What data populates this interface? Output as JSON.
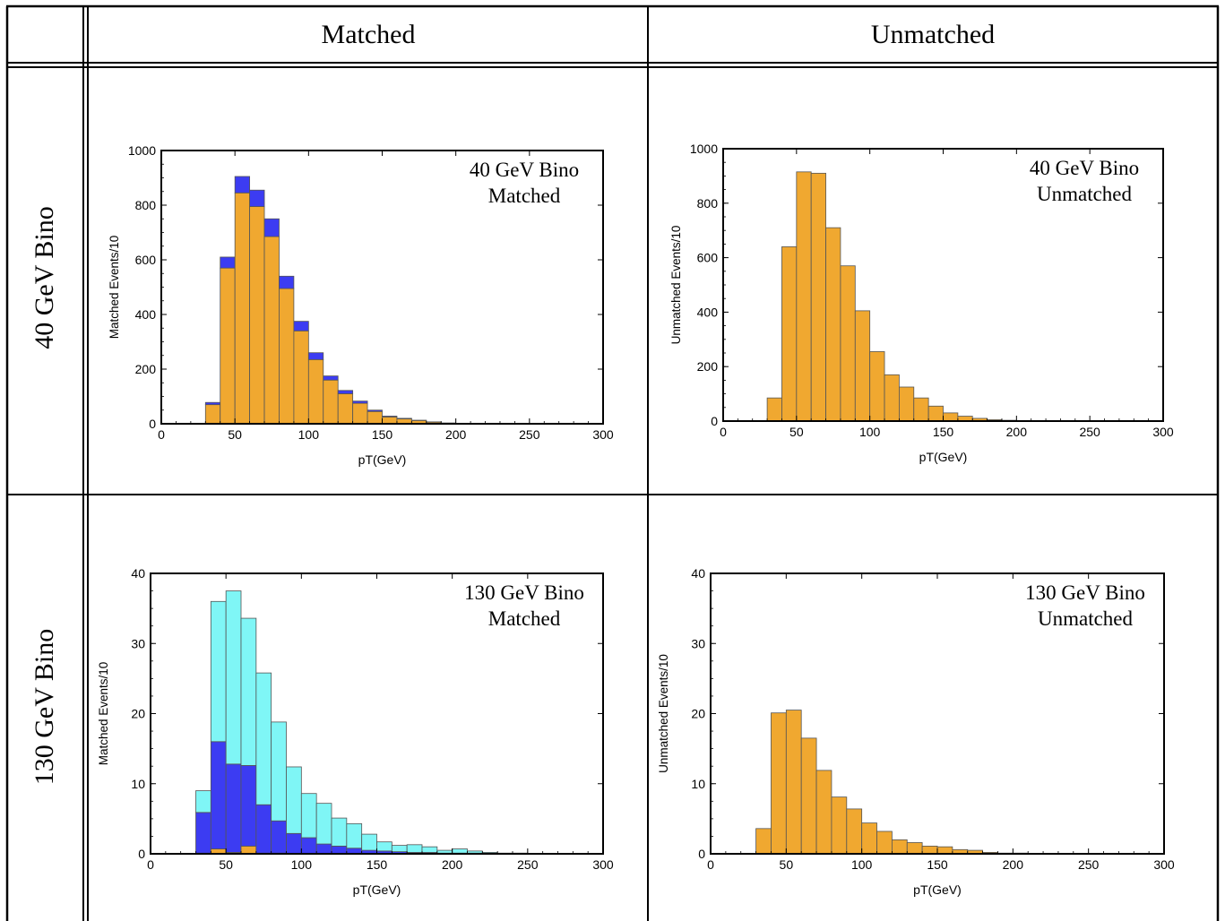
{
  "table": {
    "col_headers": [
      "Matched",
      "Unmatched"
    ],
    "row_headers": [
      "40 GeV Bino",
      "130 GeV Bino"
    ]
  },
  "colors": {
    "orange": "#F0A830",
    "blue": "#3C3CF2",
    "cyan": "#7FF6F6"
  },
  "chart_data": [
    {
      "type": "bar",
      "stacked": true,
      "annotation": [
        "40 GeV Bino",
        "Matched"
      ],
      "xlabel": "pT(GeV)",
      "ylabel": "Matched Events/10",
      "xlim": [
        0,
        300
      ],
      "ylim": [
        0,
        1000
      ],
      "xticks": [
        0,
        50,
        100,
        150,
        200,
        250,
        300
      ],
      "yticks": [
        0,
        200,
        400,
        600,
        800,
        1000
      ],
      "bin_width": 10,
      "bin_starts": [
        30,
        40,
        50,
        60,
        70,
        80,
        90,
        100,
        110,
        120,
        130,
        140,
        150,
        160,
        170,
        180,
        190,
        200,
        210
      ],
      "series": [
        {
          "color": "#F0A830",
          "values": [
            70,
            570,
            845,
            795,
            685,
            495,
            340,
            235,
            160,
            110,
            75,
            45,
            25,
            18,
            12,
            6,
            3,
            2,
            1
          ]
        },
        {
          "color": "#3C3CF2",
          "values": [
            8,
            40,
            60,
            60,
            65,
            45,
            35,
            25,
            15,
            12,
            8,
            5,
            3,
            2,
            1,
            1,
            0,
            0,
            0
          ]
        }
      ]
    },
    {
      "type": "bar",
      "stacked": true,
      "annotation": [
        "40 GeV Bino",
        "Unmatched"
      ],
      "xlabel": "pT(GeV)",
      "ylabel": "Unmatched Events/10",
      "xlim": [
        0,
        300
      ],
      "ylim": [
        0,
        1000
      ],
      "xticks": [
        0,
        50,
        100,
        150,
        200,
        250,
        300
      ],
      "yticks": [
        0,
        200,
        400,
        600,
        800,
        1000
      ],
      "bin_width": 10,
      "bin_starts": [
        30,
        40,
        50,
        60,
        70,
        80,
        90,
        100,
        110,
        120,
        130,
        140,
        150,
        160,
        170,
        180,
        190,
        200
      ],
      "series": [
        {
          "color": "#F0A830",
          "values": [
            85,
            640,
            915,
            910,
            710,
            570,
            405,
            255,
            170,
            125,
            85,
            55,
            30,
            18,
            10,
            5,
            3,
            1
          ]
        }
      ]
    },
    {
      "type": "bar",
      "stacked": true,
      "annotation": [
        "130 GeV Bino",
        "Matched"
      ],
      "xlabel": "pT(GeV)",
      "ylabel": "Matched Events/10",
      "xlim": [
        0,
        300
      ],
      "ylim": [
        0,
        40
      ],
      "xticks": [
        0,
        50,
        100,
        150,
        200,
        250,
        300
      ],
      "yticks": [
        0,
        10,
        20,
        30,
        40
      ],
      "bin_width": 10,
      "bin_starts": [
        30,
        40,
        50,
        60,
        70,
        80,
        90,
        100,
        110,
        120,
        130,
        140,
        150,
        160,
        170,
        180,
        190,
        200,
        210,
        220,
        230,
        240
      ],
      "series": [
        {
          "color": "#F0A830",
          "values": [
            0.1,
            0.7,
            0.2,
            1.1,
            0.1,
            0.1,
            0,
            0,
            0,
            0,
            0,
            0,
            0,
            0,
            0,
            0,
            0,
            0,
            0,
            0,
            0,
            0
          ]
        },
        {
          "color": "#3C3CF2",
          "values": [
            5.8,
            15.3,
            12.6,
            11.5,
            6.9,
            4.6,
            2.9,
            2.3,
            1.4,
            1.1,
            0.8,
            0.5,
            0.4,
            0.3,
            0.2,
            0.2,
            0.1,
            0.1,
            0.1,
            0,
            0,
            0
          ]
        },
        {
          "color": "#7FF6F6",
          "values": [
            3.1,
            20.0,
            24.7,
            21.0,
            18.8,
            14.1,
            9.5,
            6.3,
            5.8,
            4.0,
            3.5,
            2.3,
            1.3,
            0.9,
            1.1,
            0.8,
            0.4,
            0.6,
            0.3,
            0.2,
            0.1,
            0.1
          ]
        }
      ]
    },
    {
      "type": "bar",
      "stacked": true,
      "annotation": [
        "130 GeV Bino",
        "Unmatched"
      ],
      "xlabel": "pT(GeV)",
      "ylabel": "Unmatched Events/10",
      "xlim": [
        0,
        300
      ],
      "ylim": [
        0,
        40
      ],
      "xticks": [
        0,
        50,
        100,
        150,
        200,
        250,
        300
      ],
      "yticks": [
        0,
        10,
        20,
        30,
        40
      ],
      "bin_width": 10,
      "bin_starts": [
        30,
        40,
        50,
        60,
        70,
        80,
        90,
        100,
        110,
        120,
        130,
        140,
        150,
        160,
        170,
        180,
        190,
        200
      ],
      "series": [
        {
          "color": "#F0A830",
          "values": [
            3.6,
            20.1,
            20.5,
            16.5,
            11.9,
            8.1,
            6.4,
            4.4,
            3.2,
            2.0,
            1.6,
            1.1,
            1.0,
            0.6,
            0.5,
            0.2,
            0.1,
            0.1
          ]
        }
      ]
    }
  ]
}
